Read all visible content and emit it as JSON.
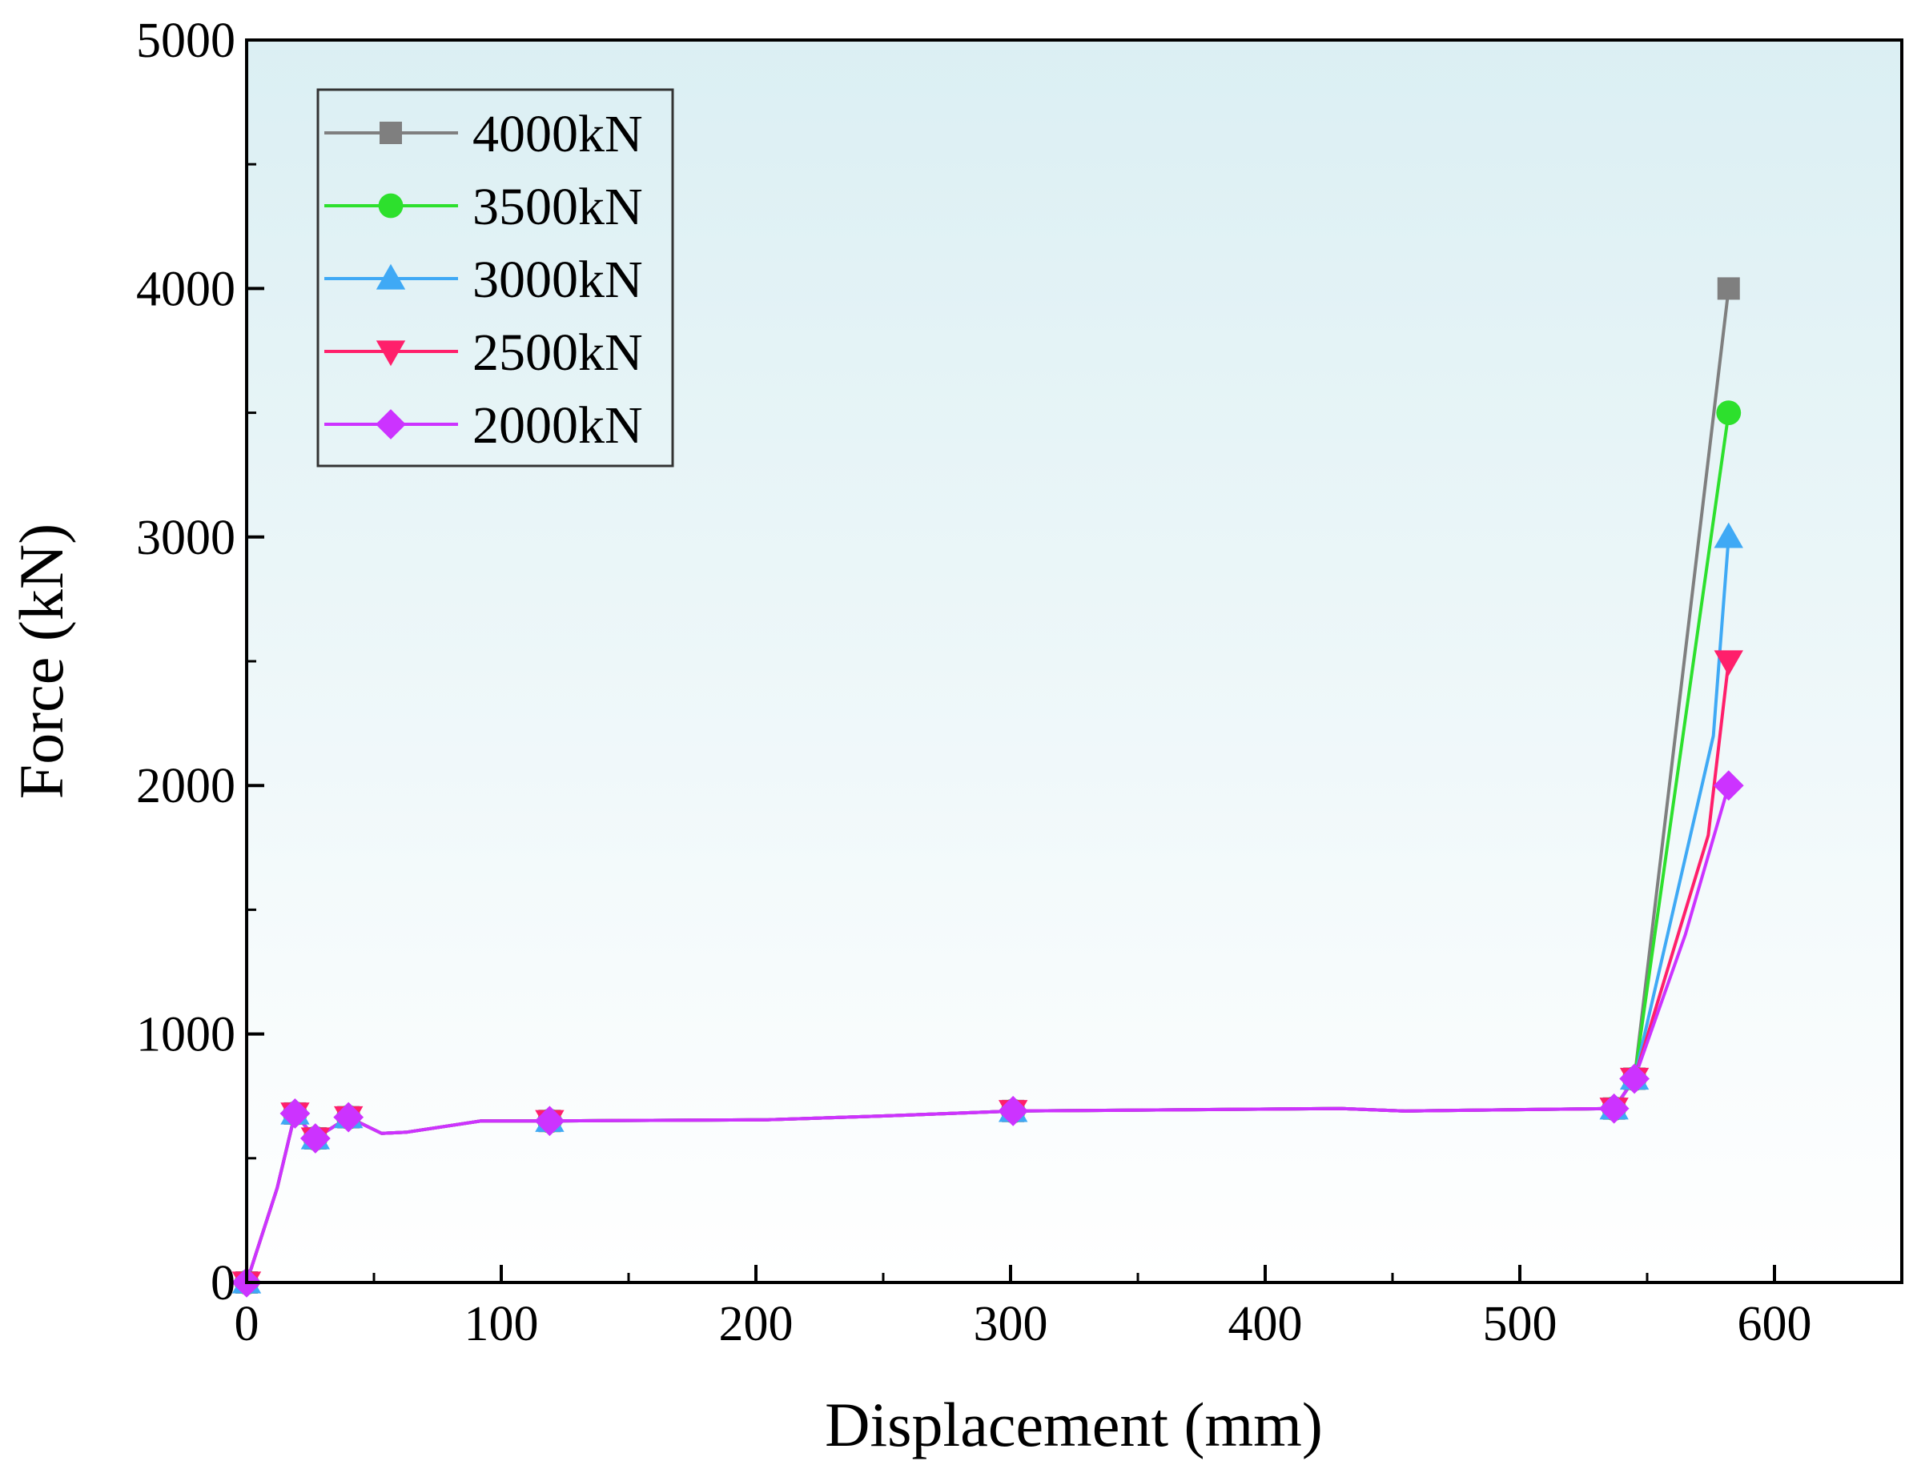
{
  "chart_data": {
    "type": "line",
    "title": "",
    "xlabel": "Displacement (mm)",
    "ylabel": "Force (kN)",
    "xlim": [
      0,
      650
    ],
    "ylim": [
      0,
      5000
    ],
    "xticks": [
      0,
      100,
      200,
      300,
      400,
      500,
      600
    ],
    "yticks": [
      0,
      1000,
      2000,
      3000,
      4000,
      5000
    ],
    "xtick_labels": [
      "0",
      "100",
      "200",
      "300",
      "400",
      "500",
      "600"
    ],
    "ytick_labels": [
      "0",
      "1000",
      "2000",
      "3000",
      "4000",
      "5000"
    ],
    "legend_position": "top-left",
    "background": {
      "top": "#dbeff3",
      "bottom": "#ffffff"
    },
    "shared_path": {
      "x": [
        0,
        12,
        19,
        27,
        40,
        53,
        63,
        92,
        119,
        205,
        250,
        301,
        430,
        455,
        537,
        545
      ],
      "y": [
        0,
        380,
        680,
        580,
        665,
        600,
        605,
        650,
        650,
        655,
        670,
        690,
        700,
        690,
        700,
        820
      ]
    },
    "shared_markers": {
      "x": [
        0,
        19,
        27,
        40,
        119,
        301,
        537,
        545
      ],
      "y": [
        0,
        680,
        580,
        665,
        650,
        690,
        700,
        820
      ]
    },
    "series": [
      {
        "name": "4000kN",
        "color": "#7f7f7f",
        "marker": "square",
        "final_x": 582,
        "final_y": 4000,
        "final_curve": []
      },
      {
        "name": "3500kN",
        "color": "#2de02d",
        "marker": "circle",
        "final_x": 582,
        "final_y": 3500,
        "final_curve": []
      },
      {
        "name": "3000kN",
        "color": "#3fa9f5",
        "marker": "triangle-up",
        "final_x": 582,
        "final_y": 3000,
        "final_curve": [
          {
            "x": 576,
            "y": 2200
          }
        ]
      },
      {
        "name": "2500kN",
        "color": "#ff1f6b",
        "marker": "triangle-down",
        "final_x": 582,
        "final_y": 2500,
        "final_curve": [
          {
            "x": 574,
            "y": 1800
          }
        ]
      },
      {
        "name": "2000kN",
        "color": "#cc33ff",
        "marker": "diamond",
        "final_x": 582,
        "final_y": 2000,
        "final_curve": [
          {
            "x": 565,
            "y": 1400
          }
        ]
      }
    ]
  }
}
